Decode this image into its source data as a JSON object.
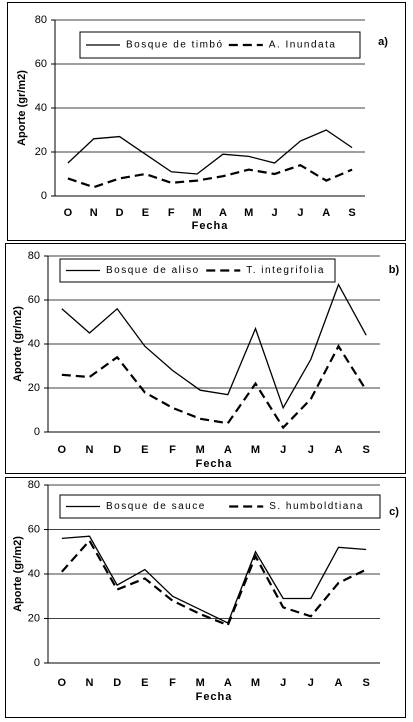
{
  "chart_data": [
    {
      "type": "line",
      "label": "a)",
      "y_label": "Aporte (gr/m2)",
      "x_label": "Fecha",
      "categories": [
        "O",
        "N",
        "D",
        "E",
        "F",
        "M",
        "A",
        "M",
        "J",
        "J",
        "A",
        "S"
      ],
      "series": [
        {
          "name": "Bosque de timbó",
          "color": "#000000",
          "dash": "solid",
          "values": [
            15,
            26,
            27,
            19,
            11,
            10,
            19,
            18,
            15,
            25,
            30,
            22
          ]
        },
        {
          "name": "A. Inundata",
          "color": "#000000",
          "dash": "dashed",
          "values": [
            8,
            4,
            8,
            10,
            6,
            7,
            9,
            12,
            10,
            14,
            7,
            12
          ]
        }
      ],
      "ylim": [
        0,
        80
      ],
      "yticks": [
        0,
        20,
        40,
        60,
        80
      ],
      "grid": true
    },
    {
      "type": "line",
      "label": "b)",
      "y_label": "Aporte (gr/m2)",
      "x_label": "Fecha",
      "categories": [
        "O",
        "N",
        "D",
        "E",
        "F",
        "M",
        "A",
        "M",
        "J",
        "J",
        "A",
        "S"
      ],
      "series": [
        {
          "name": "Bosque de aliso",
          "color": "#000000",
          "dash": "solid",
          "values": [
            56,
            45,
            56,
            39,
            28,
            19,
            17,
            47,
            11,
            33,
            67,
            44
          ]
        },
        {
          "name": "T. integrifolia",
          "color": "#000000",
          "dash": "dashed",
          "values": [
            26,
            25,
            34,
            18,
            11,
            6,
            4,
            22,
            2,
            15,
            39,
            19
          ]
        }
      ],
      "ylim": [
        0,
        80
      ],
      "yticks": [
        0,
        20,
        40,
        60,
        80
      ],
      "grid": true
    },
    {
      "type": "line",
      "label": "c)",
      "y_label": "Aporte (gr/m2)",
      "x_label": "Fecha",
      "categories": [
        "O",
        "N",
        "D",
        "E",
        "F",
        "M",
        "A",
        "M",
        "J",
        "J",
        "A",
        "S"
      ],
      "series": [
        {
          "name": "Bosque de sauce",
          "color": "#000000",
          "dash": "solid",
          "values": [
            56,
            57,
            35,
            42,
            30,
            24,
            18,
            50,
            29,
            29,
            52,
            51
          ]
        },
        {
          "name": "S. humboldtiana",
          "color": "#000000",
          "dash": "dashed",
          "values": [
            41,
            55,
            33,
            38,
            28,
            22,
            17,
            48,
            25,
            21,
            36,
            42
          ]
        }
      ],
      "ylim": [
        0,
        80
      ],
      "yticks": [
        0,
        20,
        40,
        60,
        80
      ],
      "grid": true
    }
  ]
}
